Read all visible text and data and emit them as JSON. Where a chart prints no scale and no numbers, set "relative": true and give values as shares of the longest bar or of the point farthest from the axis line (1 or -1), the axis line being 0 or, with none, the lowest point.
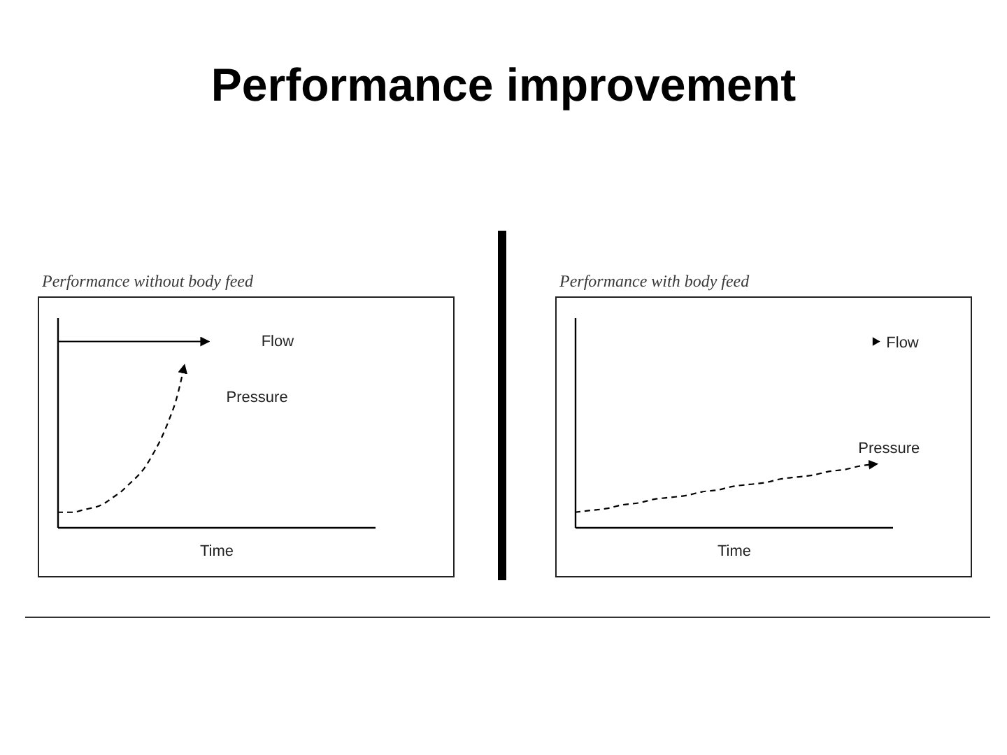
{
  "chart_data": [
    {
      "type": "other",
      "title": "Performance improvement"
    },
    {
      "type": "line",
      "title": "Performance without body feed",
      "xlabel": "Time",
      "relative": true,
      "tick_labels": false,
      "categories": [
        null,
        null,
        null,
        null,
        null,
        null,
        null,
        null,
        null,
        null,
        null,
        null,
        null,
        null,
        null,
        null,
        null,
        null,
        null,
        null,
        null,
        null,
        null,
        null,
        null,
        null,
        null,
        null,
        null,
        null,
        null,
        null,
        null,
        null,
        null,
        null,
        null,
        null,
        null,
        null,
        null
      ],
      "series": [
        {
          "name": "Flow",
          "color": "#000000",
          "line_style": "solid",
          "values": [
            1,
            1,
            1,
            1,
            1,
            1,
            1,
            1,
            1,
            1,
            1,
            1,
            1,
            1,
            1,
            1,
            1,
            1,
            1,
            1,
            null,
            null,
            null,
            null,
            null,
            null,
            null,
            null,
            null,
            null,
            null,
            null,
            null,
            null,
            null,
            null,
            null,
            null,
            null,
            null,
            null
          ]
        },
        {
          "name": "Pressure",
          "color": "#000000",
          "line_style": "dashed",
          "values": [
            0.08,
            0.08,
            0.08,
            0.09,
            0.1,
            0.11,
            0.13,
            0.16,
            0.19,
            0.23,
            0.27,
            0.32,
            0.39,
            0.47,
            0.57,
            0.69,
            0.87,
            null,
            null,
            null,
            null,
            null,
            null,
            null,
            null,
            null,
            null,
            null,
            null,
            null,
            null,
            null,
            null,
            null,
            null,
            null,
            null,
            null,
            null,
            null,
            null
          ]
        }
      ]
    },
    {
      "type": "line",
      "title": "Performance with body feed",
      "xlabel": "Time",
      "relative": true,
      "tick_labels": false,
      "categories": [
        null,
        null,
        null,
        null,
        null,
        null,
        null,
        null,
        null,
        null,
        null,
        null,
        null,
        null,
        null,
        null,
        null,
        null,
        null,
        null,
        null
      ],
      "series": [
        {
          "name": "Flow",
          "color": "#000000",
          "marker": "triangle",
          "values": [
            null,
            null,
            null,
            null,
            null,
            null,
            null,
            null,
            null,
            null,
            null,
            null,
            null,
            null,
            null,
            null,
            null,
            null,
            null,
            1,
            null
          ]
        },
        {
          "name": "Pressure",
          "color": "#000000",
          "line_style": "dashed",
          "values": [
            0.08,
            0.09,
            0.1,
            0.12,
            0.13,
            0.15,
            0.16,
            0.17,
            0.19,
            0.2,
            0.22,
            0.23,
            0.24,
            0.26,
            0.27,
            0.28,
            0.3,
            0.31,
            0.33,
            0.34,
            null
          ]
        }
      ]
    }
  ]
}
